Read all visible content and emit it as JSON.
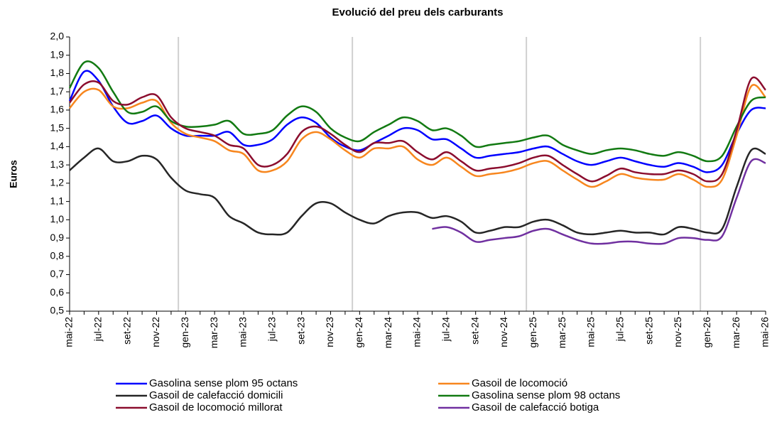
{
  "chart_data": {
    "type": "line",
    "title": "Evolució del preu dels carburants",
    "y_label": "Euros",
    "categories": [
      "mai-22",
      null,
      "jul-22",
      null,
      "set-22",
      null,
      "nov-22",
      null,
      "gen-23",
      null,
      "mar-23",
      null,
      "mai-23",
      null,
      "jul-23",
      null,
      "set-23",
      null,
      "nov-23",
      null,
      "gen-24",
      null,
      "mar-24",
      null,
      "mai-24",
      null,
      "jul-24",
      null,
      "set-24",
      null,
      "nov-24",
      null,
      "gen-25",
      null,
      "mar-25",
      null,
      "mai-25",
      null,
      "jul-25",
      null,
      "set-25",
      null,
      "nov-25",
      null,
      "gen-26",
      null,
      "mar-26",
      null,
      "mai-26"
    ],
    "ylim": [
      0.5,
      2.0
    ],
    "yticks": [
      {
        "value": 0.5,
        "label": "0,5"
      },
      {
        "value": 0.6,
        "label": "0,6"
      },
      {
        "value": 0.7,
        "label": "0,7"
      },
      {
        "value": 0.8,
        "label": "0,8"
      },
      {
        "value": 0.9,
        "label": "0,9"
      },
      {
        "value": 1.0,
        "label": "1,0"
      },
      {
        "value": 1.1,
        "label": "1,1"
      },
      {
        "value": 1.2,
        "label": "1,2"
      },
      {
        "value": 1.3,
        "label": "1,3"
      },
      {
        "value": 1.4,
        "label": "1,4"
      },
      {
        "value": 1.5,
        "label": "1,5"
      },
      {
        "value": 1.6,
        "label": "1,6"
      },
      {
        "value": 1.7,
        "label": "1,7"
      },
      {
        "value": 1.8,
        "label": "1,8"
      },
      {
        "value": 1.9,
        "label": "1,9"
      },
      {
        "value": 2.0,
        "label": "2,0"
      }
    ],
    "series": [
      {
        "name": "Gasolina sense plom 95 octans",
        "color": "#0000ff",
        "values": [
          1.65,
          1.81,
          1.76,
          1.62,
          1.53,
          1.54,
          1.57,
          1.5,
          1.46,
          1.46,
          1.46,
          1.48,
          1.41,
          1.41,
          1.44,
          1.52,
          1.56,
          1.53,
          1.45,
          1.4,
          1.38,
          1.42,
          1.46,
          1.5,
          1.49,
          1.44,
          1.44,
          1.39,
          1.34,
          1.35,
          1.36,
          1.37,
          1.39,
          1.4,
          1.36,
          1.32,
          1.3,
          1.32,
          1.34,
          1.32,
          1.3,
          1.29,
          1.31,
          1.29,
          1.26,
          1.3,
          1.47,
          1.6,
          1.61
        ]
      },
      {
        "name": "Gasoil de locomoció",
        "color": "#f7861e",
        "values": [
          1.61,
          1.7,
          1.71,
          1.62,
          1.61,
          1.64,
          1.65,
          1.53,
          1.47,
          1.45,
          1.43,
          1.38,
          1.36,
          1.27,
          1.27,
          1.32,
          1.44,
          1.48,
          1.44,
          1.38,
          1.34,
          1.39,
          1.39,
          1.4,
          1.33,
          1.3,
          1.34,
          1.29,
          1.24,
          1.25,
          1.26,
          1.28,
          1.31,
          1.32,
          1.27,
          1.22,
          1.18,
          1.21,
          1.25,
          1.23,
          1.22,
          1.22,
          1.25,
          1.22,
          1.18,
          1.22,
          1.46,
          1.73,
          1.67
        ]
      },
      {
        "name": "Gasoil de calefacció domicili",
        "color": "#262626",
        "values": [
          1.27,
          1.34,
          1.39,
          1.32,
          1.32,
          1.35,
          1.33,
          1.23,
          1.16,
          1.14,
          1.12,
          1.02,
          0.98,
          0.93,
          0.92,
          0.93,
          1.02,
          1.09,
          1.09,
          1.04,
          1.0,
          0.98,
          1.02,
          1.04,
          1.04,
          1.01,
          1.02,
          0.99,
          0.93,
          0.94,
          0.96,
          0.96,
          0.99,
          1.0,
          0.97,
          0.93,
          0.92,
          0.93,
          0.94,
          0.93,
          0.93,
          0.92,
          0.96,
          0.95,
          0.93,
          0.95,
          1.18,
          1.38,
          1.36
        ]
      },
      {
        "name": "Gasolina sense plom 98 octans",
        "color": "#127a12",
        "values": [
          1.72,
          1.86,
          1.83,
          1.7,
          1.59,
          1.59,
          1.62,
          1.54,
          1.51,
          1.51,
          1.52,
          1.54,
          1.47,
          1.47,
          1.49,
          1.57,
          1.62,
          1.59,
          1.5,
          1.45,
          1.43,
          1.48,
          1.52,
          1.56,
          1.54,
          1.49,
          1.5,
          1.46,
          1.4,
          1.41,
          1.42,
          1.43,
          1.45,
          1.46,
          1.41,
          1.38,
          1.36,
          1.38,
          1.39,
          1.38,
          1.36,
          1.35,
          1.37,
          1.35,
          1.32,
          1.35,
          1.51,
          1.65,
          1.67
        ]
      },
      {
        "name": "Gasoil de locomoció millorat",
        "color": "#8b0d2e",
        "values": [
          1.64,
          1.74,
          1.75,
          1.65,
          1.63,
          1.67,
          1.68,
          1.56,
          1.5,
          1.48,
          1.46,
          1.41,
          1.39,
          1.3,
          1.3,
          1.36,
          1.48,
          1.51,
          1.47,
          1.41,
          1.37,
          1.42,
          1.42,
          1.43,
          1.37,
          1.33,
          1.37,
          1.32,
          1.27,
          1.28,
          1.29,
          1.31,
          1.34,
          1.35,
          1.3,
          1.25,
          1.21,
          1.24,
          1.28,
          1.26,
          1.25,
          1.25,
          1.27,
          1.25,
          1.21,
          1.25,
          1.49,
          1.77,
          1.71
        ]
      },
      {
        "name": "Gasoil de calefacció botiga",
        "color": "#7030a0",
        "values": [
          null,
          null,
          null,
          null,
          null,
          null,
          null,
          null,
          null,
          null,
          null,
          null,
          null,
          null,
          null,
          null,
          null,
          null,
          null,
          null,
          null,
          null,
          null,
          null,
          null,
          0.95,
          0.96,
          0.93,
          0.88,
          0.89,
          0.9,
          0.91,
          0.94,
          0.95,
          0.92,
          0.89,
          0.87,
          0.87,
          0.88,
          0.88,
          0.87,
          0.87,
          0.9,
          0.9,
          0.89,
          0.91,
          1.12,
          1.32,
          1.31
        ]
      }
    ]
  }
}
